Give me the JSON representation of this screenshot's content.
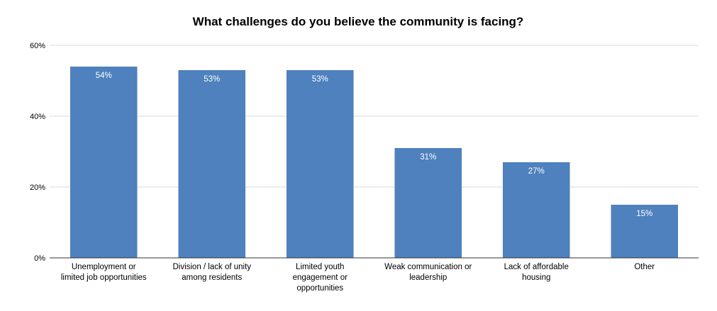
{
  "chart_data": {
    "type": "bar",
    "title": "What challenges do you believe the community is facing?",
    "categories": [
      [
        "Unemployment or",
        "limited job opportunities"
      ],
      [
        "Division / lack of unity",
        "among residents"
      ],
      [
        "Limited youth",
        "engagement or",
        "opportunities"
      ],
      [
        "Weak communication or",
        "leadership"
      ],
      [
        "Lack of affordable",
        "housing"
      ],
      [
        "Other"
      ]
    ],
    "values": [
      54,
      53,
      53,
      31,
      27,
      15
    ],
    "data_labels": [
      "54%",
      "53%",
      "53%",
      "31%",
      "27%",
      "15%"
    ],
    "yticks": [
      0,
      20,
      40,
      60
    ],
    "ytick_labels": [
      "0%",
      "20%",
      "40%",
      "60%"
    ],
    "ylim": [
      0,
      60
    ],
    "xlabel": "",
    "ylabel": "",
    "grid": true,
    "legend": "none",
    "bar_color": "#4e81bd"
  }
}
